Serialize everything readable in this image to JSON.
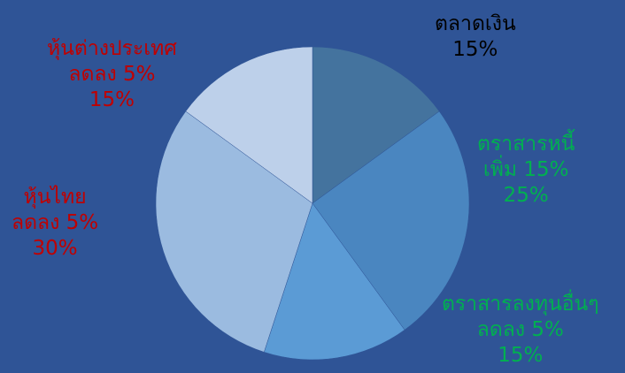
{
  "chart_data": {
    "type": "pie",
    "start_angle_deg": 0,
    "direction": "clockwise",
    "slices": [
      {
        "name": "ตลาดเงิน",
        "change": "",
        "percent": "15%",
        "value": 15,
        "fill": "#44739E",
        "label_color": "#000000"
      },
      {
        "name": "ตราสารหนี้",
        "change": "เพิ่ม 15%",
        "percent": "25%",
        "value": 25,
        "fill": "#4A86C0",
        "label_color": "#00B050"
      },
      {
        "name": "ตราสารลงทุนอื่นๆ",
        "change": "ลดลง 5%",
        "percent": "15%",
        "value": 15,
        "fill": "#5B9BD5",
        "label_color": "#00B050"
      },
      {
        "name": "หุ้นไทย",
        "change": "ลดลง 5%",
        "percent": "30%",
        "value": 30,
        "fill": "#9BBBE0",
        "label_color": "#C00000"
      },
      {
        "name": "หุ้นต่างประเทศ",
        "change": "ลดลง 5%",
        "percent": "15%",
        "value": 15,
        "fill": "#BDD0EA",
        "label_color": "#C00000"
      }
    ]
  }
}
